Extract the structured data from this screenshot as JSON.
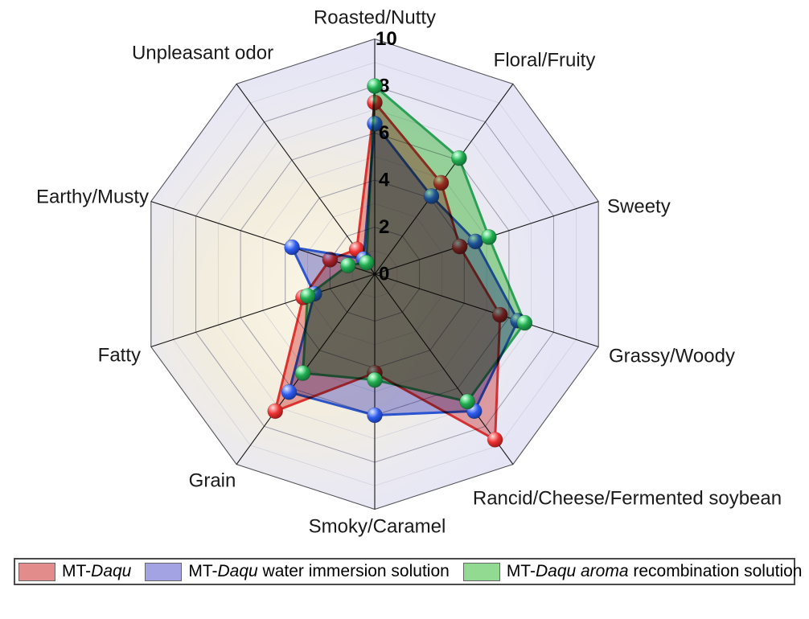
{
  "chart_data": {
    "type": "radar",
    "axes": [
      "Roasted/Nutty",
      "Floral/Fruity",
      "Sweety",
      "Grassy/Woody",
      "Rancid/Cheese/Fermented soybean",
      "Smoky/Caramel",
      "Grain",
      "Fatty",
      "Earthy/Musty",
      "Unpleasant odor"
    ],
    "scale": {
      "min": 0,
      "max": 10,
      "tick_labels": [
        "0",
        "2",
        "4",
        "6",
        "8",
        "10"
      ]
    },
    "grid": "decagonal rings, on",
    "legend_position": "bottom",
    "series": [
      {
        "name": "MT-Daqu",
        "name_segments": [
          {
            "t": "MT-",
            "i": false
          },
          {
            "t": "Daqu",
            "i": true
          }
        ],
        "line_color": "#e73535",
        "fill_color": "#f0a0a0",
        "marker_color": "#ee3030",
        "swatch_color": "#e38c8c",
        "values": [
          7.3,
          4.8,
          3.8,
          5.6,
          8.7,
          4.2,
          7.2,
          3.2,
          2.0,
          1.3
        ]
      },
      {
        "name": "MT-Daqu water immersion solution",
        "name_segments": [
          {
            "t": "MT-",
            "i": false
          },
          {
            "t": "Daqu",
            "i": true
          },
          {
            "t": " water immersion solution",
            "i": false
          }
        ],
        "line_color": "#2d5be5",
        "fill_color": "#a8a8e8",
        "marker_color": "#2d5bee",
        "swatch_color": "#a3a3e3",
        "values": [
          6.4,
          4.1,
          4.5,
          6.4,
          7.2,
          6.0,
          6.2,
          2.7,
          3.7,
          0.8
        ]
      },
      {
        "name": "MT-Daqu aroma recombination solution",
        "name_segments": [
          {
            "t": "MT-",
            "i": false
          },
          {
            "t": "Daqu aroma",
            "i": true
          },
          {
            "t": " recombination solution",
            "i": false
          }
        ],
        "line_color": "#2fb05a",
        "fill_color": "#98e098",
        "marker_color": "#22ab50",
        "swatch_color": "#92d992",
        "values": [
          8.0,
          6.1,
          5.1,
          6.7,
          6.7,
          4.5,
          5.2,
          3.0,
          1.2,
          0.6
        ]
      }
    ]
  },
  "colors": {
    "plot_bg_center": "#fbf5e4",
    "plot_bg_edge": "#e5e5f6",
    "ring_major": "#9898a8",
    "ring_minor": "#c6c6d6",
    "spoke": "#161616"
  }
}
